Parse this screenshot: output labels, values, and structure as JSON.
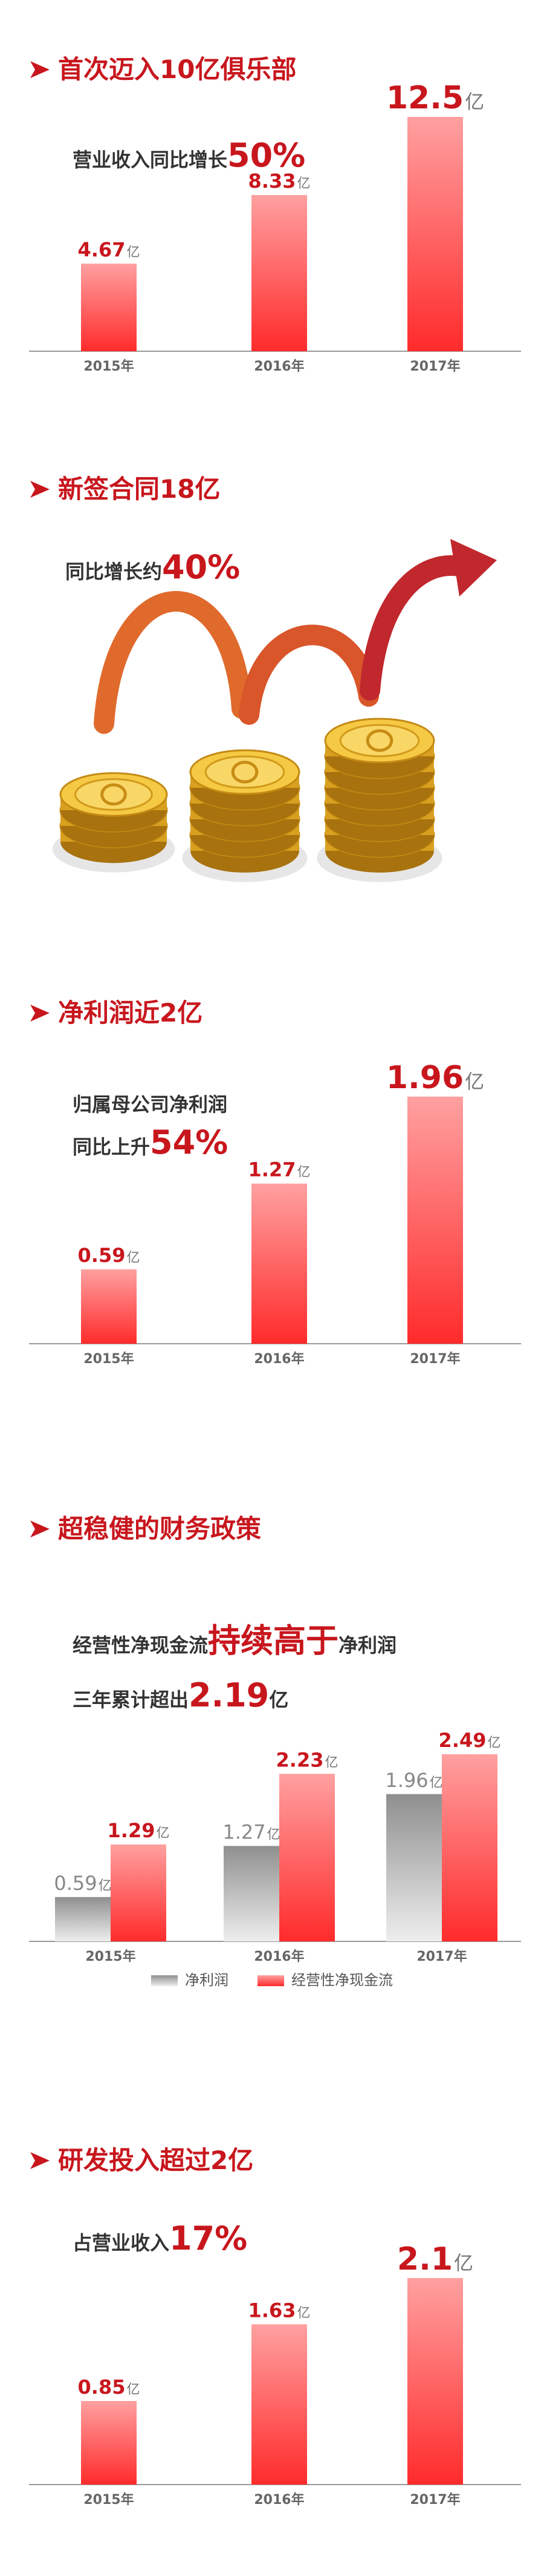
{
  "chart_data": [
    {
      "type": "bar",
      "title": "首次迈入10亿俱乐部",
      "subtitle": [
        [
          {
            "text": "营业收入同比增长"
          },
          {
            "text": "50%",
            "style": "highlight"
          }
        ]
      ],
      "categories": [
        "2015年",
        "2016年",
        "2017年"
      ],
      "values": [
        4.67,
        8.33,
        12.5
      ],
      "unit": "亿",
      "color": "#ff2b2b"
    },
    {
      "type": "illustration",
      "title": "新签合同18亿",
      "subtitle": [
        [
          {
            "text": "同比增长约"
          },
          {
            "text": "40%",
            "style": "highlight"
          }
        ]
      ]
    },
    {
      "type": "bar",
      "title": "净利润近2亿",
      "subtitle": [
        [
          {
            "text": "归属母公司净利润"
          }
        ],
        [
          {
            "text": "同比上升"
          },
          {
            "text": "54%",
            "style": "highlight"
          }
        ]
      ],
      "categories": [
        "2015年",
        "2016年",
        "2017年"
      ],
      "values": [
        0.59,
        1.27,
        1.96
      ],
      "unit": "亿",
      "color": "#ff2b2b"
    },
    {
      "type": "grouped_bar",
      "title": "超稳健的财务政策",
      "subtitle": [
        [
          {
            "text": "经营性净现金流"
          },
          {
            "text": "持续高于",
            "style": "highlight"
          },
          {
            "text": "净利润"
          }
        ],
        [
          {
            "text": "三年累计超出"
          },
          {
            "text": "2.19",
            "style": "highlight"
          },
          {
            "text": "亿"
          }
        ]
      ],
      "categories": [
        "2015年",
        "2016年",
        "2017年"
      ],
      "unit": "亿",
      "legend": "bottom",
      "series": [
        {
          "name": "净利润",
          "color": "#8f8f8f",
          "values": [
            0.59,
            1.27,
            1.96
          ]
        },
        {
          "name": "经营性净现金流",
          "color": "#ff2b2b",
          "values": [
            1.29,
            2.23,
            2.49
          ]
        }
      ]
    },
    {
      "type": "bar",
      "title": "研发投入超过2亿",
      "subtitle": [
        [
          {
            "text": "占营业收入"
          },
          {
            "text": "17%",
            "style": "highlight"
          }
        ]
      ],
      "categories": [
        "2015年",
        "2016年",
        "2017年"
      ],
      "values": [
        0.85,
        1.63,
        2.1
      ],
      "unit": "亿",
      "color": "#ff2b2b"
    }
  ]
}
